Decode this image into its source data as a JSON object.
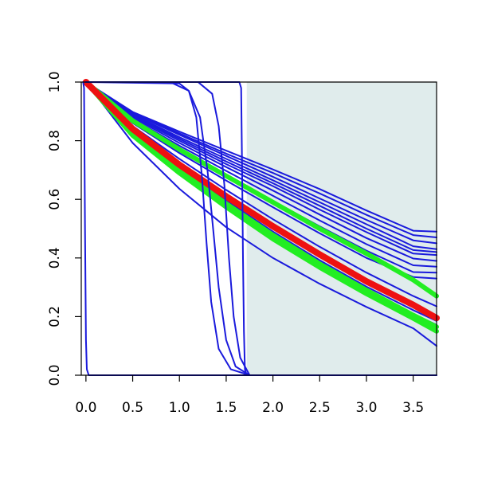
{
  "chart_data": {
    "type": "line",
    "title": "",
    "xlabel": "",
    "ylabel": "",
    "xlim": [
      -0.05,
      3.75
    ],
    "ylim": [
      0.0,
      1.0
    ],
    "x_ticks": [
      "0.0",
      "0.5",
      "1.0",
      "1.5",
      "2.0",
      "2.5",
      "3.0",
      "3.5"
    ],
    "x_tick_values": [
      0.0,
      0.5,
      1.0,
      1.5,
      2.0,
      2.5,
      3.0,
      3.5
    ],
    "y_ticks": [
      "0.0",
      "0.2",
      "0.4",
      "0.6",
      "0.8",
      "1.0"
    ],
    "y_tick_values": [
      0.0,
      0.2,
      0.4,
      0.6,
      0.8,
      1.0
    ],
    "grid": false,
    "legend": "none",
    "shaded_region": {
      "x_start": 1.72,
      "x_end": 3.75,
      "y_start": 0.0,
      "y_end": 1.0,
      "color": "#e0ecec"
    },
    "series_style": {
      "blue": "#1a1adc",
      "green": "#22ee22",
      "red": "#ee1111"
    },
    "series": [
      {
        "color_key": "blue",
        "width": 2,
        "points": [
          [
            0,
            1
          ],
          [
            0.5,
            0.898
          ],
          [
            1,
            0.831
          ],
          [
            1.5,
            0.766
          ],
          [
            2,
            0.702
          ],
          [
            2.5,
            0.635
          ],
          [
            3,
            0.562
          ],
          [
            3.5,
            0.493
          ],
          [
            3.75,
            0.49
          ]
        ]
      },
      {
        "color_key": "blue",
        "width": 2,
        "points": [
          [
            0,
            1
          ],
          [
            0.5,
            0.896
          ],
          [
            1,
            0.825
          ],
          [
            1.5,
            0.756
          ],
          [
            2,
            0.69
          ],
          [
            2.5,
            0.62
          ],
          [
            3,
            0.547
          ],
          [
            3.5,
            0.478
          ],
          [
            3.75,
            0.47
          ]
        ]
      },
      {
        "color_key": "blue",
        "width": 2,
        "points": [
          [
            0,
            1
          ],
          [
            0.5,
            0.893
          ],
          [
            1,
            0.82
          ],
          [
            1.5,
            0.748
          ],
          [
            2,
            0.677
          ],
          [
            2.5,
            0.603
          ],
          [
            3,
            0.53
          ],
          [
            3.5,
            0.46
          ],
          [
            3.75,
            0.45
          ]
        ]
      },
      {
        "color_key": "blue",
        "width": 2,
        "points": [
          [
            0,
            1
          ],
          [
            0.5,
            0.889
          ],
          [
            1,
            0.812
          ],
          [
            1.5,
            0.738
          ],
          [
            2,
            0.665
          ],
          [
            2.5,
            0.59
          ],
          [
            3,
            0.515
          ],
          [
            3.5,
            0.44
          ],
          [
            3.75,
            0.43
          ]
        ]
      },
      {
        "color_key": "blue",
        "width": 2,
        "points": [
          [
            0,
            1
          ],
          [
            0.5,
            0.886
          ],
          [
            1,
            0.806
          ],
          [
            1.5,
            0.729
          ],
          [
            2,
            0.655
          ],
          [
            2.5,
            0.578
          ],
          [
            3,
            0.5
          ],
          [
            3.5,
            0.427
          ],
          [
            3.75,
            0.42
          ]
        ]
      },
      {
        "color_key": "blue",
        "width": 2,
        "points": [
          [
            0,
            1
          ],
          [
            0.5,
            0.883
          ],
          [
            1,
            0.8
          ],
          [
            1.5,
            0.72
          ],
          [
            2,
            0.645
          ],
          [
            2.5,
            0.565
          ],
          [
            3,
            0.488
          ],
          [
            3.5,
            0.415
          ],
          [
            3.75,
            0.41
          ]
        ]
      },
      {
        "color_key": "blue",
        "width": 2,
        "points": [
          [
            0,
            1
          ],
          [
            0.5,
            0.879
          ],
          [
            1,
            0.792
          ],
          [
            1.5,
            0.71
          ],
          [
            2,
            0.63
          ],
          [
            2.5,
            0.548
          ],
          [
            3,
            0.468
          ],
          [
            3.5,
            0.398
          ],
          [
            3.75,
            0.39
          ]
        ]
      },
      {
        "color_key": "blue",
        "width": 2,
        "points": [
          [
            0,
            1
          ],
          [
            0.5,
            0.874
          ],
          [
            1,
            0.783
          ],
          [
            1.5,
            0.697
          ],
          [
            2,
            0.612
          ],
          [
            2.5,
            0.528
          ],
          [
            3,
            0.447
          ],
          [
            3.5,
            0.375
          ],
          [
            3.75,
            0.37
          ]
        ]
      },
      {
        "color_key": "blue",
        "width": 2,
        "points": [
          [
            0,
            1
          ],
          [
            0.5,
            0.868
          ],
          [
            1,
            0.772
          ],
          [
            1.5,
            0.682
          ],
          [
            2,
            0.594
          ],
          [
            2.5,
            0.508
          ],
          [
            3,
            0.425
          ],
          [
            3.5,
            0.352
          ],
          [
            3.75,
            0.35
          ]
        ]
      },
      {
        "color_key": "blue",
        "width": 2,
        "points": [
          [
            0,
            1
          ],
          [
            0.5,
            0.86
          ],
          [
            1,
            0.758
          ],
          [
            1.5,
            0.664
          ],
          [
            2,
            0.573
          ],
          [
            2.5,
            0.484
          ],
          [
            3,
            0.4
          ],
          [
            3.5,
            0.335
          ],
          [
            3.75,
            0.33
          ]
        ]
      },
      {
        "color_key": "blue",
        "width": 2,
        "points": [
          [
            0,
            1
          ],
          [
            0.5,
            0.85
          ],
          [
            1,
            0.738
          ],
          [
            1.5,
            0.632
          ],
          [
            2,
            0.532
          ],
          [
            2.5,
            0.438
          ],
          [
            3,
            0.35
          ],
          [
            3.5,
            0.27
          ],
          [
            3.75,
            0.235
          ]
        ]
      },
      {
        "color_key": "blue",
        "width": 2,
        "points": [
          [
            0,
            1
          ],
          [
            0.5,
            0.84
          ],
          [
            1,
            0.722
          ],
          [
            1.5,
            0.61
          ],
          [
            2,
            0.505
          ],
          [
            2.5,
            0.408
          ],
          [
            3,
            0.32
          ],
          [
            3.5,
            0.24
          ],
          [
            3.75,
            0.2
          ]
        ]
      },
      {
        "color_key": "blue",
        "width": 2,
        "points": [
          [
            0,
            1
          ],
          [
            0.5,
            0.832
          ],
          [
            1,
            0.71
          ],
          [
            1.5,
            0.596
          ],
          [
            2,
            0.49
          ],
          [
            2.5,
            0.392
          ],
          [
            3,
            0.302
          ],
          [
            3.5,
            0.222
          ],
          [
            3.75,
            0.185
          ]
        ]
      },
      {
        "color_key": "blue",
        "width": 2,
        "points": [
          [
            0,
            1
          ],
          [
            0.5,
            0.826
          ],
          [
            1,
            0.7
          ],
          [
            1.5,
            0.584
          ],
          [
            2,
            0.476
          ],
          [
            2.5,
            0.378
          ],
          [
            3,
            0.288
          ],
          [
            3.5,
            0.208
          ],
          [
            3.75,
            0.172
          ]
        ]
      },
      {
        "color_key": "blue",
        "width": 2,
        "points": [
          [
            0,
            1
          ],
          [
            0.5,
            0.792
          ],
          [
            1,
            0.636
          ],
          [
            1.5,
            0.505
          ],
          [
            2,
            0.4
          ],
          [
            2.5,
            0.312
          ],
          [
            3,
            0.233
          ],
          [
            3.5,
            0.16
          ],
          [
            3.75,
            0.1
          ]
        ]
      },
      {
        "color_key": "green",
        "width": 6,
        "points": [
          [
            0,
            1
          ],
          [
            0.5,
            0.868
          ],
          [
            1,
            0.77
          ],
          [
            1.5,
            0.68
          ],
          [
            2,
            0.59
          ],
          [
            2.5,
            0.5
          ],
          [
            3,
            0.415
          ],
          [
            3.5,
            0.325
          ],
          [
            3.75,
            0.27
          ]
        ]
      },
      {
        "color_key": "green",
        "width": 6,
        "points": [
          [
            0,
            1
          ],
          [
            0.5,
            0.825
          ],
          [
            1,
            0.698
          ],
          [
            1.5,
            0.585
          ],
          [
            2,
            0.478
          ],
          [
            2.5,
            0.38
          ],
          [
            3,
            0.29
          ],
          [
            3.5,
            0.205
          ],
          [
            3.75,
            0.165
          ]
        ]
      },
      {
        "color_key": "green",
        "width": 6,
        "points": [
          [
            0,
            1
          ],
          [
            0.5,
            0.818
          ],
          [
            1,
            0.69
          ],
          [
            1.5,
            0.574
          ],
          [
            2,
            0.465
          ],
          [
            2.5,
            0.368
          ],
          [
            3,
            0.278
          ],
          [
            3.5,
            0.194
          ],
          [
            3.75,
            0.15
          ]
        ]
      },
      {
        "color_key": "red",
        "width": 8,
        "points": [
          [
            0,
            1
          ],
          [
            0.5,
            0.84
          ],
          [
            1,
            0.718
          ],
          [
            1.5,
            0.61
          ],
          [
            2,
            0.508
          ],
          [
            2.5,
            0.412
          ],
          [
            3,
            0.32
          ],
          [
            3.5,
            0.24
          ],
          [
            3.75,
            0.195
          ]
        ]
      },
      {
        "color_key": "blue",
        "width": 2,
        "points": [
          [
            -0.03,
            1
          ],
          [
            -0.02,
            0.98
          ],
          [
            -0.01,
            0.5
          ],
          [
            0,
            0.12
          ],
          [
            0.01,
            0.02
          ],
          [
            0.03,
            0
          ],
          [
            3.75,
            0
          ]
        ]
      },
      {
        "color_key": "blue",
        "width": 2,
        "points": [
          [
            0,
            1
          ],
          [
            1.64,
            1
          ],
          [
            1.66,
            0.98
          ],
          [
            1.67,
            0.7
          ],
          [
            1.68,
            0.4
          ],
          [
            1.69,
            0.15
          ],
          [
            1.7,
            0.02
          ],
          [
            1.72,
            0
          ],
          [
            3.75,
            0
          ]
        ]
      },
      {
        "color_key": "blue",
        "width": 2,
        "points": [
          [
            0,
            1
          ],
          [
            1.0,
            0.995
          ],
          [
            1.1,
            0.97
          ],
          [
            1.18,
            0.88
          ],
          [
            1.24,
            0.68
          ],
          [
            1.29,
            0.45
          ],
          [
            1.34,
            0.25
          ],
          [
            1.42,
            0.09
          ],
          [
            1.55,
            0.02
          ],
          [
            1.75,
            0
          ]
        ]
      },
      {
        "color_key": "blue",
        "width": 2,
        "points": [
          [
            0,
            1
          ],
          [
            0.9,
            1
          ],
          [
            1.1,
            0.97
          ],
          [
            1.22,
            0.88
          ],
          [
            1.3,
            0.7
          ],
          [
            1.36,
            0.5
          ],
          [
            1.42,
            0.3
          ],
          [
            1.5,
            0.12
          ],
          [
            1.6,
            0.03
          ],
          [
            1.75,
            0
          ]
        ]
      },
      {
        "color_key": "blue",
        "width": 2,
        "points": [
          [
            0,
            1
          ],
          [
            1.2,
            1
          ],
          [
            1.35,
            0.96
          ],
          [
            1.42,
            0.85
          ],
          [
            1.48,
            0.65
          ],
          [
            1.53,
            0.4
          ],
          [
            1.58,
            0.2
          ],
          [
            1.65,
            0.06
          ],
          [
            1.75,
            0
          ]
        ]
      }
    ]
  }
}
